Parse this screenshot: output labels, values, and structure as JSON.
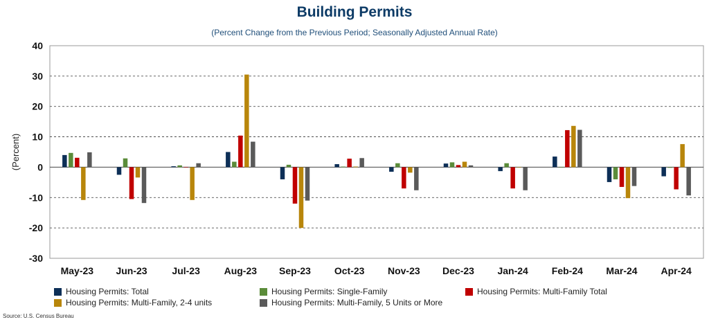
{
  "chart_data": {
    "type": "bar",
    "title": "Building Permits",
    "subtitle": "(Percent Change from the Previous Period; Seasonally Adjusted Annual Rate)",
    "ylabel": "(Percent)",
    "xlabel": "",
    "ylim": [
      -30,
      40
    ],
    "yticks": [
      -30,
      -20,
      -10,
      0,
      10,
      20,
      30,
      40
    ],
    "grid": "horizontal dashed",
    "legend_position": "bottom",
    "categories": [
      "May-23",
      "Jun-23",
      "Jul-23",
      "Aug-23",
      "Sep-23",
      "Oct-23",
      "Nov-23",
      "Dec-23",
      "Jan-24",
      "Feb-24",
      "Mar-24",
      "Apr-24"
    ],
    "series": [
      {
        "name": "Housing Permits: Total",
        "color": "#0d2f57",
        "values": [
          4.0,
          -2.5,
          0.3,
          5.0,
          -4.0,
          1.0,
          -1.5,
          1.2,
          -1.3,
          3.5,
          -4.9,
          -3.0
        ]
      },
      {
        "name": "Housing Permits: Single-Family",
        "color": "#5b8c3a",
        "values": [
          4.7,
          2.9,
          0.6,
          1.8,
          0.8,
          0.2,
          1.3,
          1.6,
          1.3,
          0.0,
          -4.0,
          -0.2
        ]
      },
      {
        "name": "Housing Permits: Multi-Family Total",
        "color": "#c00000",
        "values": [
          3.1,
          -10.5,
          0.0,
          10.4,
          -12.0,
          2.8,
          -7.0,
          0.7,
          -7.0,
          12.2,
          -6.5,
          -7.3
        ]
      },
      {
        "name": "Housing Permits: Multi-Family, 2-4 units",
        "color": "#b8860b",
        "values": [
          -10.8,
          -3.4,
          -10.8,
          30.5,
          -20.0,
          0.2,
          -1.8,
          1.8,
          0.0,
          13.6,
          -10.2,
          7.6
        ]
      },
      {
        "name": "Housing Permits: Multi-Family, 5 Units or More",
        "color": "#5a5a5a",
        "values": [
          4.9,
          -11.8,
          1.3,
          8.4,
          -11.0,
          3.0,
          -7.6,
          0.6,
          -7.6,
          12.3,
          -6.2,
          -9.3
        ]
      }
    ]
  },
  "source": "Source: U.S. Census Bureau"
}
